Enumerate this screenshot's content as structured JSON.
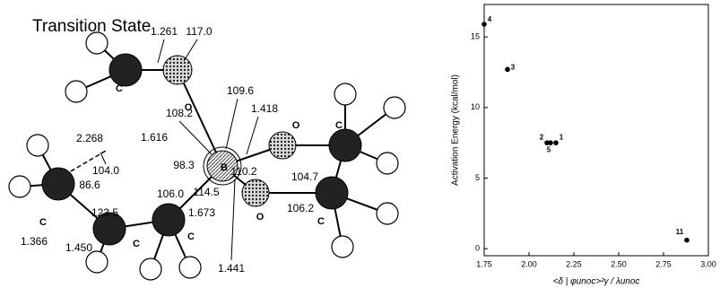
{
  "diagram": {
    "title": "Transition State",
    "atoms": [
      "C",
      "O",
      "C",
      "C",
      "C",
      "B",
      "O",
      "C",
      "O",
      "C"
    ],
    "labels": [
      "1.261",
      "117.0",
      "2.268",
      "104.0",
      "1.616",
      "108.2",
      "109.6",
      "1.418",
      "98.3",
      "86.6",
      "110.2",
      "104.7",
      "123.5",
      "106.0",
      "1.673",
      "114.5",
      "106.2",
      "1.366",
      "1.450",
      "1.441"
    ]
  },
  "chart_data": {
    "type": "scatter",
    "y_label": "Activation Energy  (kcal/mol)",
    "x_label": "<δ | φunoc>²γ / λunoc",
    "point_labels": [
      "4",
      "3",
      "2",
      "5",
      "1",
      "11"
    ],
    "x": [
      1.75,
      1.88,
      2.1,
      2.12,
      2.15,
      2.88
    ],
    "values": [
      15.9,
      12.7,
      7.5,
      7.5,
      7.5,
      0.6
    ],
    "color": "#000000",
    "xlim": [
      1.75,
      3.0
    ],
    "ylim": [
      -0.5,
      17.3
    ],
    "xticks": [
      {
        "value": 1.75,
        "label": "1.75"
      },
      {
        "value": 2.0,
        "label": "2.00"
      },
      {
        "value": 2.25,
        "label": "2.25"
      },
      {
        "value": 2.5,
        "label": "2.50"
      },
      {
        "value": 2.75,
        "label": "2.75"
      },
      {
        "value": 3.0,
        "label": "3.00"
      }
    ],
    "yticks": [
      0,
      5,
      10,
      15
    ]
  }
}
